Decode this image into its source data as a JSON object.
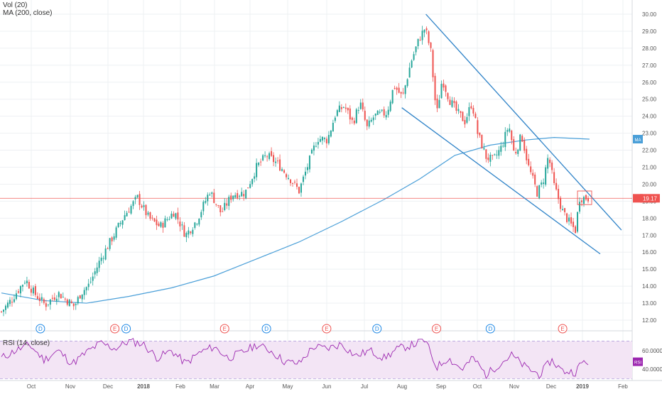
{
  "indicators": {
    "volume_label": "Vol (20)",
    "ma_label": "MA (200, close)",
    "rsi_label": "RSI (14, close)"
  },
  "badges": {
    "last_price": "19.17",
    "ma_tag": "MA",
    "rsi_tag": "RSI"
  },
  "colors": {
    "up": "#26a69a",
    "down": "#ef5350",
    "ma": "#4a9fd8",
    "trendline": "#2f83c8",
    "rsi_line": "#9c27b0",
    "rsi_band": "#f3e5f5",
    "price_line": "#ef5350",
    "dividend": "#1e88e5",
    "earnings": "#ef5350"
  },
  "chart_data": [
    {
      "type": "candlestick",
      "title": "",
      "y_ticks": [
        "12.00",
        "13.00",
        "14.00",
        "15.00",
        "16.00",
        "17.00",
        "18.00",
        "19.00",
        "20.00",
        "21.00",
        "22.00",
        "23.00",
        "24.00",
        "25.00",
        "26.00",
        "27.00",
        "28.00",
        "29.00",
        "30.00"
      ],
      "x_ticks": [
        "Oct",
        "Nov",
        "Dec",
        "2018",
        "Feb",
        "Mar",
        "Apr",
        "May",
        "Jun",
        "Jul",
        "Aug",
        "Sep",
        "Oct",
        "Nov",
        "Dec",
        "2019",
        "Feb"
      ],
      "ylim": [
        11.5,
        30.5
      ],
      "last_price": 19.17,
      "close_anchors": [
        {
          "d": 0,
          "v": 12.5
        },
        {
          "d": 14,
          "v": 13.2
        },
        {
          "d": 34,
          "v": 14.4
        },
        {
          "d": 46,
          "v": 13.6
        },
        {
          "d": 62,
          "v": 12.9
        },
        {
          "d": 80,
          "v": 13.6
        },
        {
          "d": 103,
          "v": 12.8
        },
        {
          "d": 112,
          "v": 13.6
        },
        {
          "d": 124,
          "v": 14.1
        },
        {
          "d": 140,
          "v": 15.6
        },
        {
          "d": 152,
          "v": 16.5
        },
        {
          "d": 174,
          "v": 18.2
        },
        {
          "d": 192,
          "v": 19.2
        },
        {
          "d": 208,
          "v": 18.0
        },
        {
          "d": 224,
          "v": 17.5
        },
        {
          "d": 244,
          "v": 18.4
        },
        {
          "d": 260,
          "v": 17.0
        },
        {
          "d": 276,
          "v": 17.9
        },
        {
          "d": 294,
          "v": 19.6
        },
        {
          "d": 310,
          "v": 18.3
        },
        {
          "d": 326,
          "v": 19.4
        },
        {
          "d": 344,
          "v": 19.5
        },
        {
          "d": 360,
          "v": 21.0
        },
        {
          "d": 374,
          "v": 21.7
        },
        {
          "d": 390,
          "v": 21.2
        },
        {
          "d": 408,
          "v": 20.3
        },
        {
          "d": 420,
          "v": 19.6
        },
        {
          "d": 434,
          "v": 21.3
        },
        {
          "d": 446,
          "v": 22.7
        },
        {
          "d": 460,
          "v": 22.6
        },
        {
          "d": 472,
          "v": 24.2
        },
        {
          "d": 484,
          "v": 24.6
        },
        {
          "d": 496,
          "v": 23.6
        },
        {
          "d": 506,
          "v": 24.8
        },
        {
          "d": 516,
          "v": 23.3
        },
        {
          "d": 526,
          "v": 24.0
        },
        {
          "d": 534,
          "v": 24.1
        },
        {
          "d": 544,
          "v": 24.2
        },
        {
          "d": 554,
          "v": 25.8
        },
        {
          "d": 566,
          "v": 25.1
        },
        {
          "d": 578,
          "v": 27.2
        },
        {
          "d": 590,
          "v": 28.6
        },
        {
          "d": 598,
          "v": 29.2
        },
        {
          "d": 606,
          "v": 27.8
        },
        {
          "d": 614,
          "v": 24.0
        },
        {
          "d": 622,
          "v": 26.2
        },
        {
          "d": 632,
          "v": 25.0
        },
        {
          "d": 642,
          "v": 24.3
        },
        {
          "d": 654,
          "v": 23.7
        },
        {
          "d": 664,
          "v": 24.8
        },
        {
          "d": 672,
          "v": 23.0
        },
        {
          "d": 684,
          "v": 21.6
        },
        {
          "d": 694,
          "v": 21.4
        },
        {
          "d": 706,
          "v": 22.2
        },
        {
          "d": 716,
          "v": 23.5
        },
        {
          "d": 724,
          "v": 21.7
        },
        {
          "d": 734,
          "v": 22.9
        },
        {
          "d": 744,
          "v": 21.0
        },
        {
          "d": 756,
          "v": 19.5
        },
        {
          "d": 764,
          "v": 20.1
        },
        {
          "d": 772,
          "v": 21.7
        },
        {
          "d": 780,
          "v": 19.9
        },
        {
          "d": 792,
          "v": 18.4
        },
        {
          "d": 802,
          "v": 17.7
        },
        {
          "d": 810,
          "v": 17.3
        },
        {
          "d": 816,
          "v": 19.2
        },
        {
          "d": 824,
          "v": 19.2
        },
        {
          "d": 830,
          "v": 19.17
        }
      ],
      "moving_average": [
        {
          "d": 0,
          "v": 13.6
        },
        {
          "d": 60,
          "v": 13.15
        },
        {
          "d": 120,
          "v": 13.0
        },
        {
          "d": 180,
          "v": 13.4
        },
        {
          "d": 240,
          "v": 13.9
        },
        {
          "d": 300,
          "v": 14.6
        },
        {
          "d": 360,
          "v": 15.6
        },
        {
          "d": 420,
          "v": 16.6
        },
        {
          "d": 480,
          "v": 17.8
        },
        {
          "d": 540,
          "v": 19.1
        },
        {
          "d": 590,
          "v": 20.3
        },
        {
          "d": 640,
          "v": 21.7
        },
        {
          "d": 690,
          "v": 22.3
        },
        {
          "d": 740,
          "v": 22.6
        },
        {
          "d": 780,
          "v": 22.75
        },
        {
          "d": 830,
          "v": 22.65
        }
      ],
      "channel_upper": [
        {
          "d": 599,
          "v": 30.0
        },
        {
          "d": 875,
          "v": 17.3
        }
      ],
      "channel_lower": [
        {
          "d": 565,
          "v": 24.5
        },
        {
          "d": 845,
          "v": 15.9
        }
      ],
      "consolidation_box": {
        "d0": 813,
        "d1": 833,
        "high": 19.6,
        "low": 18.8
      },
      "events": [
        {
          "d": 55,
          "label": "D",
          "kind": "dividend"
        },
        {
          "d": 160,
          "label": "E",
          "kind": "earnings"
        },
        {
          "d": 176,
          "label": "D",
          "kind": "dividend"
        },
        {
          "d": 315,
          "label": "E",
          "kind": "earnings"
        },
        {
          "d": 374,
          "label": "D",
          "kind": "dividend"
        },
        {
          "d": 459,
          "label": "E",
          "kind": "earnings"
        },
        {
          "d": 530,
          "label": "D",
          "kind": "dividend"
        },
        {
          "d": 614,
          "label": "E",
          "kind": "earnings"
        },
        {
          "d": 690,
          "label": "D",
          "kind": "dividend"
        },
        {
          "d": 792,
          "label": "E",
          "kind": "earnings"
        }
      ]
    },
    {
      "type": "line",
      "title": "",
      "series_label": "RSI (14, close)",
      "y_ticks": [
        "40.0000",
        "60.0000"
      ],
      "ylim": [
        28,
        78
      ],
      "band": [
        30,
        70
      ],
      "last_value": 48,
      "values": [
        {
          "d": 0,
          "v": 52
        },
        {
          "d": 20,
          "v": 60
        },
        {
          "d": 40,
          "v": 66
        },
        {
          "d": 60,
          "v": 50
        },
        {
          "d": 80,
          "v": 60
        },
        {
          "d": 100,
          "v": 46
        },
        {
          "d": 120,
          "v": 58
        },
        {
          "d": 140,
          "v": 68
        },
        {
          "d": 160,
          "v": 62
        },
        {
          "d": 180,
          "v": 70
        },
        {
          "d": 200,
          "v": 67
        },
        {
          "d": 220,
          "v": 52
        },
        {
          "d": 240,
          "v": 60
        },
        {
          "d": 260,
          "v": 46
        },
        {
          "d": 280,
          "v": 58
        },
        {
          "d": 300,
          "v": 64
        },
        {
          "d": 320,
          "v": 52
        },
        {
          "d": 340,
          "v": 58
        },
        {
          "d": 360,
          "v": 66
        },
        {
          "d": 380,
          "v": 60
        },
        {
          "d": 400,
          "v": 48
        },
        {
          "d": 420,
          "v": 46
        },
        {
          "d": 440,
          "v": 64
        },
        {
          "d": 460,
          "v": 62
        },
        {
          "d": 480,
          "v": 67
        },
        {
          "d": 500,
          "v": 54
        },
        {
          "d": 520,
          "v": 60
        },
        {
          "d": 540,
          "v": 52
        },
        {
          "d": 560,
          "v": 62
        },
        {
          "d": 580,
          "v": 66
        },
        {
          "d": 598,
          "v": 71
        },
        {
          "d": 614,
          "v": 42
        },
        {
          "d": 630,
          "v": 52
        },
        {
          "d": 650,
          "v": 40
        },
        {
          "d": 666,
          "v": 52
        },
        {
          "d": 684,
          "v": 34
        },
        {
          "d": 700,
          "v": 44
        },
        {
          "d": 720,
          "v": 55
        },
        {
          "d": 740,
          "v": 42
        },
        {
          "d": 760,
          "v": 34
        },
        {
          "d": 776,
          "v": 50
        },
        {
          "d": 792,
          "v": 38
        },
        {
          "d": 810,
          "v": 37
        },
        {
          "d": 820,
          "v": 48
        },
        {
          "d": 830,
          "v": 48
        }
      ]
    }
  ]
}
